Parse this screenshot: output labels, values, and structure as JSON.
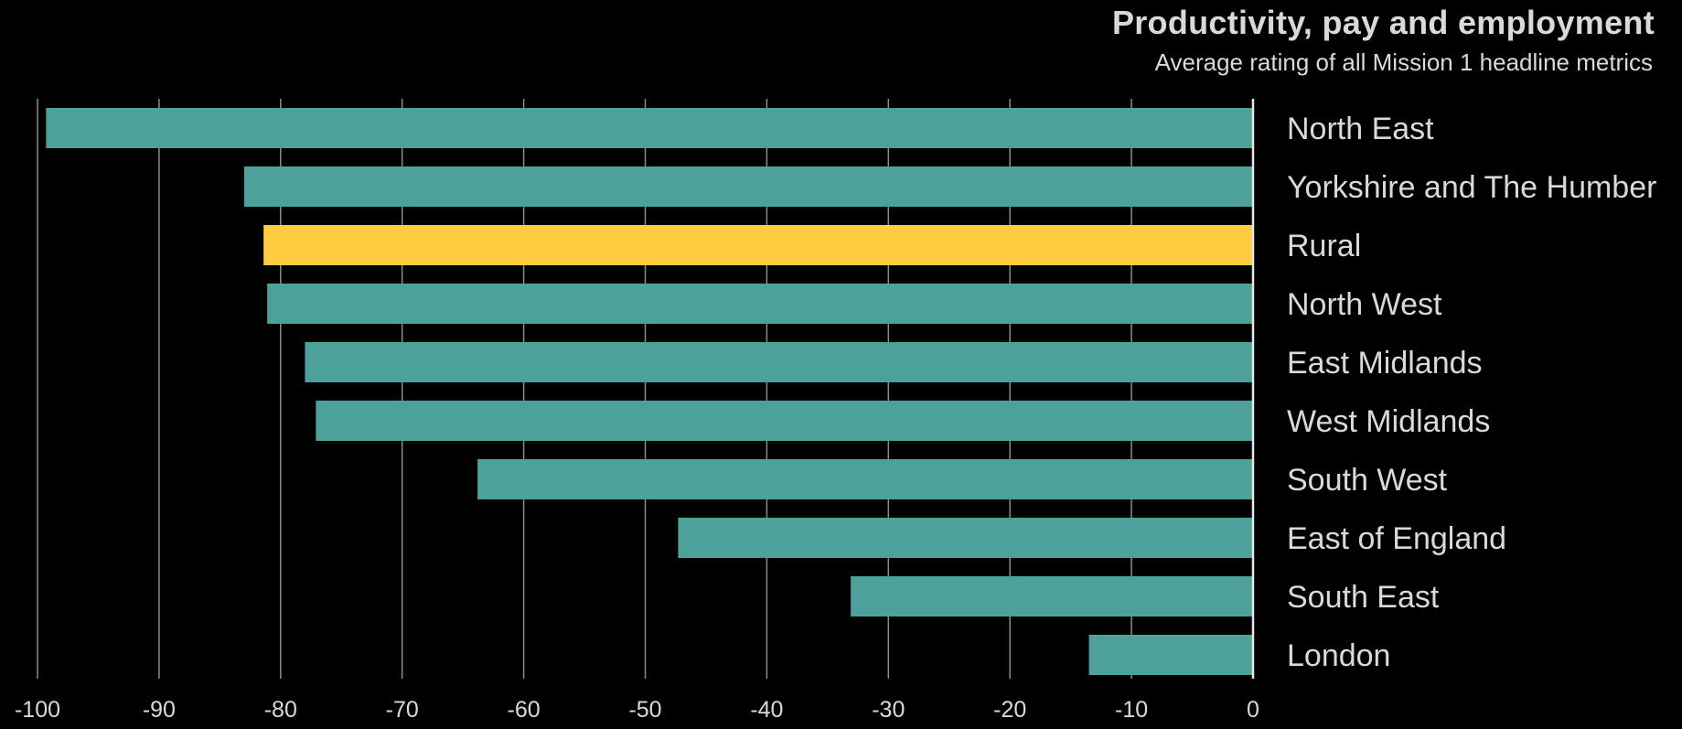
{
  "chart_data": {
    "type": "bar",
    "orientation": "horizontal",
    "title": "Productivity, pay and employment",
    "subtitle": "Average rating of all Mission 1 headline metrics",
    "categories": [
      "North East",
      "Yorkshire and The Humber",
      "Rural",
      "North West",
      "East Midlands",
      "West Midlands",
      "South West",
      "East of England",
      "South East",
      "London"
    ],
    "values": [
      -99.3,
      -83,
      -81.4,
      -81.1,
      -78,
      -77.1,
      -63.8,
      -47.3,
      -33.1,
      -13.5
    ],
    "bar_colors": [
      "#4ca19b",
      "#4ca19b",
      "#ffcd3f",
      "#4ca19b",
      "#4ca19b",
      "#4ca19b",
      "#4ca19b",
      "#4ca19b",
      "#4ca19b",
      "#4ca19b"
    ],
    "xlim": [
      -100,
      0
    ],
    "xticks": [
      -100,
      -90,
      -80,
      -70,
      -60,
      -50,
      -40,
      -30,
      -20,
      -10,
      0
    ],
    "xtick_labels": [
      "-100",
      "-90",
      "-80",
      "-70",
      "-60",
      "-50",
      "-40",
      "-30",
      "-20",
      "-10",
      "0"
    ],
    "xlabel": "",
    "ylabel": "",
    "grid": true,
    "legend": "none",
    "colors": {
      "background": "#000000",
      "text": "#d9d9d9",
      "gridline": "#8c8c8c",
      "default_bar": "#4ca19b",
      "highlight_bar": "#ffcd3f"
    }
  }
}
